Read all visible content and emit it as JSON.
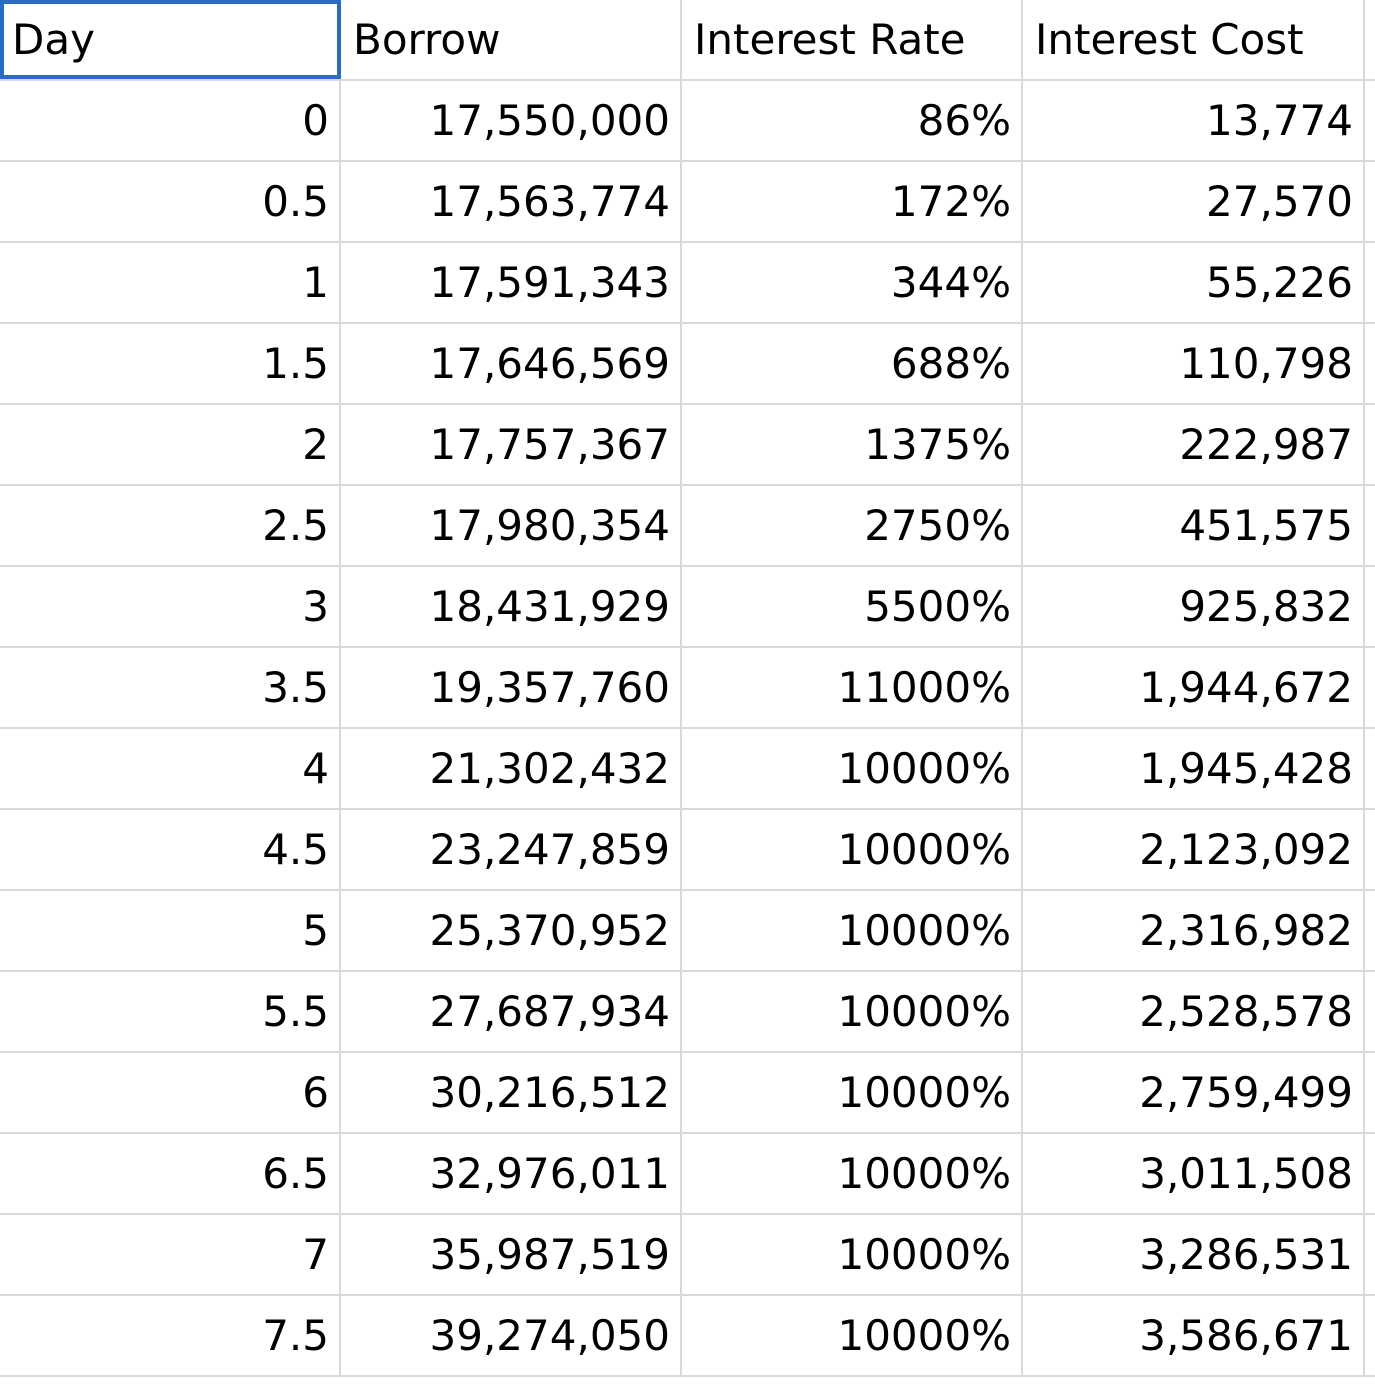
{
  "columns": [
    "Day",
    "Borrow",
    "Interest Rate",
    "Interest Cost"
  ],
  "rows": [
    [
      "0",
      "17,550,000",
      "86%",
      "13,774"
    ],
    [
      "0.5",
      "17,563,774",
      "172%",
      "27,570"
    ],
    [
      "1",
      "17,591,343",
      "344%",
      "55,226"
    ],
    [
      "1.5",
      "17,646,569",
      "688%",
      "110,798"
    ],
    [
      "2",
      "17,757,367",
      "1375%",
      "222,987"
    ],
    [
      "2.5",
      "17,980,354",
      "2750%",
      "451,575"
    ],
    [
      "3",
      "18,431,929",
      "5500%",
      "925,832"
    ],
    [
      "3.5",
      "19,357,760",
      "11000%",
      "1,944,672"
    ],
    [
      "4",
      "21,302,432",
      "10000%",
      "1,945,428"
    ],
    [
      "4.5",
      "23,247,859",
      "10000%",
      "2,123,092"
    ],
    [
      "5",
      "25,370,952",
      "10000%",
      "2,316,982"
    ],
    [
      "5.5",
      "27,687,934",
      "10000%",
      "2,528,578"
    ],
    [
      "6",
      "30,216,512",
      "10000%",
      "2,759,499"
    ],
    [
      "6.5",
      "32,976,011",
      "10000%",
      "3,011,508"
    ],
    [
      "7",
      "35,987,519",
      "10000%",
      "3,286,531"
    ],
    [
      "7.5",
      "39,274,050",
      "10000%",
      "3,586,671"
    ]
  ],
  "colors": {
    "gridline": "#d9d9d9",
    "selection": "#2a6cc4",
    "text": "#000000"
  }
}
